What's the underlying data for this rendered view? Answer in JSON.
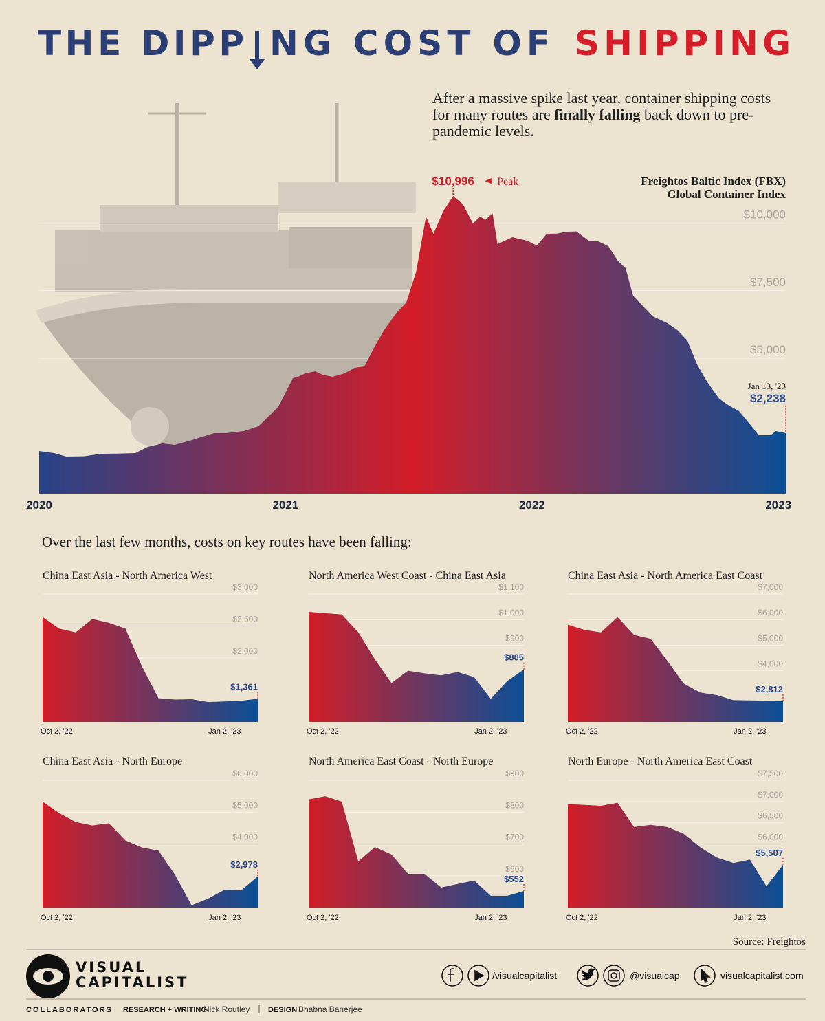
{
  "header": {
    "title": [
      "THE DIPP",
      "NG COST OF",
      "SHIPPING"
    ],
    "intro": [
      "After a massive spike last year, container shipping costs for many routes are ",
      "finally falling",
      " back down to pre-pandemic levels."
    ],
    "section_heading": "Over the last few months, costs on key routes have been falling:",
    "source": "Source: Freightos"
  },
  "chart_data": [
    {
      "type": "area",
      "title": [
        "Freightos Baltic Index (FBX)",
        "Global Container Index"
      ],
      "x": [
        2020.0,
        2020.06,
        2020.11,
        2020.18,
        2020.25,
        2020.32,
        2020.39,
        2020.44,
        2020.5,
        2020.55,
        2020.62,
        2020.71,
        2020.76,
        2020.83,
        2020.89,
        2020.97,
        2021.03,
        2021.05,
        2021.08,
        2021.12,
        2021.15,
        2021.19,
        2021.24,
        2021.28,
        2021.32,
        2021.36,
        2021.4,
        2021.45,
        2021.49,
        2021.53,
        2021.57,
        2021.6,
        2021.64,
        2021.68,
        2021.72,
        2021.76,
        2021.79,
        2021.81,
        2021.84,
        2021.86,
        2021.92,
        2021.98,
        2022.02,
        2022.06,
        2022.1,
        2022.14,
        2022.18,
        2022.23,
        2022.27,
        2022.31,
        2022.35,
        2022.38,
        2022.41,
        2022.45,
        2022.49,
        2022.55,
        2022.59,
        2022.63,
        2022.67,
        2022.71,
        2022.76,
        2022.8,
        2022.84,
        2022.88,
        2022.92,
        2022.97,
        2022.99,
        2023.03
      ],
      "values": [
        1575,
        1500,
        1372,
        1380,
        1474,
        1480,
        1500,
        1728,
        1855,
        1804,
        1982,
        2236,
        2240,
        2312,
        2490,
        3201,
        4268,
        4319,
        4446,
        4522,
        4395,
        4319,
        4446,
        4649,
        4700,
        5411,
        6047,
        6682,
        7063,
        8206,
        10239,
        9604,
        10442,
        10996,
        10696,
        9985,
        10239,
        10112,
        10366,
        9223,
        9477,
        9350,
        9172,
        9604,
        9610,
        9680,
        9690,
        9350,
        9320,
        9146,
        8587,
        8333,
        7317,
        6936,
        6555,
        6301,
        6047,
        5666,
        4776,
        4141,
        3506,
        3252,
        3049,
        2617,
        2160,
        2170,
        2312,
        2238
      ],
      "value_labels": [
        null,
        null,
        null,
        null,
        null,
        null,
        null,
        null,
        null,
        null,
        null,
        null,
        null,
        null,
        null,
        null,
        null,
        null,
        null,
        null,
        null,
        null,
        null,
        null,
        null,
        null,
        null,
        null,
        null,
        null,
        null,
        null,
        null,
        "$10,996",
        null,
        null,
        null,
        null,
        null,
        null,
        null,
        null,
        null,
        null,
        null,
        null,
        null,
        null,
        null,
        null,
        null,
        null,
        null,
        null,
        null,
        null,
        null,
        null,
        null,
        null,
        null,
        null,
        null,
        null,
        null,
        null,
        null,
        "$2,238"
      ],
      "annotations": {
        "peak": "Peak",
        "latest_date": "Jan 13, '23"
      },
      "xlim": [
        2020,
        2023.03
      ],
      "xticks": [
        2020,
        2021,
        2022,
        2023
      ],
      "ylim": [
        0,
        11000
      ],
      "yticks": [
        {
          "value": 5000,
          "label": "$5,000"
        },
        {
          "value": 7500,
          "label": "$7,500"
        },
        {
          "value": 10000,
          "label": "$10,000"
        }
      ],
      "grid": true,
      "gradient": [
        "#274388",
        "#d21d28",
        "#0b4f96"
      ]
    },
    {
      "type": "area",
      "title": "China East Asia - North America West",
      "categories": [
        "Oct 2, '22",
        null,
        null,
        null,
        null,
        null,
        null,
        null,
        null,
        null,
        null,
        "Jan 2, '23",
        null,
        null
      ],
      "values": [
        2640,
        2460,
        2400,
        2610,
        2550,
        2460,
        1870,
        1370,
        1350,
        1355,
        1310,
        1320,
        1330,
        1361
      ],
      "value_labels": [
        null,
        null,
        null,
        null,
        null,
        null,
        null,
        null,
        null,
        null,
        null,
        null,
        null,
        "$1,361"
      ],
      "ylim": [
        1000,
        3000
      ],
      "yticks": [
        {
          "value": 2000,
          "label": "$2,000"
        },
        {
          "value": 2500,
          "label": "$2,500"
        },
        {
          "value": 3000,
          "label": "$3,000"
        }
      ],
      "grid": true,
      "gradient": [
        "#d21d28",
        "#0b4f96"
      ]
    },
    {
      "type": "area",
      "title": "North America West Coast - China East Asia",
      "categories": [
        "Oct 2, '22",
        null,
        null,
        null,
        null,
        null,
        null,
        null,
        null,
        null,
        null,
        "Jan 2, '23",
        null,
        null
      ],
      "values": [
        1030,
        1025,
        1020,
        950,
        845,
        752,
        800,
        790,
        782,
        795,
        775,
        690,
        760,
        805
      ],
      "value_labels": [
        null,
        null,
        null,
        null,
        null,
        null,
        null,
        null,
        null,
        null,
        null,
        null,
        null,
        "$805"
      ],
      "ylim": [
        600,
        1100
      ],
      "yticks": [
        {
          "value": 900,
          "label": "$900"
        },
        {
          "value": 1000,
          "label": "$1,000"
        },
        {
          "value": 1100,
          "label": "$1,100"
        }
      ],
      "grid": true,
      "gradient": [
        "#d21d28",
        "#0b4f96"
      ]
    },
    {
      "type": "area",
      "title": "China East Asia - North America East Coast",
      "categories": [
        "Oct 2, '22",
        null,
        null,
        null,
        null,
        null,
        null,
        null,
        null,
        null,
        null,
        "Jan 2, '23",
        null,
        null
      ],
      "values": [
        5800,
        5600,
        5500,
        6100,
        5400,
        5250,
        4400,
        3500,
        3150,
        3050,
        2850,
        2840,
        2830,
        2812
      ],
      "value_labels": [
        null,
        null,
        null,
        null,
        null,
        null,
        null,
        null,
        null,
        null,
        null,
        null,
        null,
        "$2,812"
      ],
      "ylim": [
        2000,
        7000
      ],
      "yticks": [
        {
          "value": 4000,
          "label": "$4,000"
        },
        {
          "value": 5000,
          "label": "$5,000"
        },
        {
          "value": 6000,
          "label": "$6,000"
        },
        {
          "value": 7000,
          "label": "$7,000"
        }
      ],
      "grid": true,
      "gradient": [
        "#d21d28",
        "#0b4f96"
      ]
    },
    {
      "type": "area",
      "title": "China East Asia - North Europe",
      "categories": [
        "Oct 2, '22",
        null,
        null,
        null,
        null,
        null,
        null,
        null,
        null,
        null,
        null,
        "Jan 2, '23",
        null,
        null
      ],
      "values": [
        5330,
        4970,
        4690,
        4580,
        4650,
        4110,
        3890,
        3790,
        3030,
        2070,
        2280,
        2560,
        2540,
        2978
      ],
      "value_labels": [
        null,
        null,
        null,
        null,
        null,
        null,
        null,
        null,
        null,
        null,
        null,
        null,
        null,
        "$2,978"
      ],
      "ylim": [
        2000,
        6000
      ],
      "yticks": [
        {
          "value": 4000,
          "label": "$4,000"
        },
        {
          "value": 5000,
          "label": "$5,000"
        },
        {
          "value": 6000,
          "label": "$6,000"
        }
      ],
      "grid": true,
      "gradient": [
        "#d21d28",
        "#0b4f96"
      ]
    },
    {
      "type": "area",
      "title": "North America East Coast - North Europe",
      "categories": [
        "Oct 2, '22",
        null,
        null,
        null,
        null,
        null,
        null,
        null,
        null,
        null,
        null,
        "Jan 2, '23",
        null,
        null
      ],
      "values": [
        840,
        850,
        833,
        645,
        690,
        667,
        606,
        606,
        563,
        574,
        585,
        537,
        537,
        552
      ],
      "value_labels": [
        null,
        null,
        null,
        null,
        null,
        null,
        null,
        null,
        null,
        null,
        null,
        null,
        null,
        "$552"
      ],
      "ylim": [
        500,
        900
      ],
      "yticks": [
        {
          "value": 600,
          "label": "$600"
        },
        {
          "value": 700,
          "label": "$700"
        },
        {
          "value": 800,
          "label": "$800"
        },
        {
          "value": 900,
          "label": "$900"
        }
      ],
      "grid": true,
      "gradient": [
        "#d21d28",
        "#0b4f96"
      ]
    },
    {
      "type": "area",
      "title": "North Europe - North America East Coast",
      "categories": [
        "Oct 2, '22",
        null,
        null,
        null,
        null,
        null,
        null,
        null,
        null,
        null,
        null,
        "Jan 2, '23",
        null,
        null
      ],
      "values": [
        6940,
        6920,
        6900,
        6970,
        6400,
        6450,
        6400,
        6240,
        5920,
        5680,
        5550,
        5630,
        5000,
        5507
      ],
      "value_labels": [
        null,
        null,
        null,
        null,
        null,
        null,
        null,
        null,
        null,
        null,
        null,
        null,
        null,
        "$5,507"
      ],
      "ylim": [
        4500,
        7500
      ],
      "yticks": [
        {
          "value": 6000,
          "label": "$6,000"
        },
        {
          "value": 6500,
          "label": "$6,500"
        },
        {
          "value": 7000,
          "label": "$7,000"
        },
        {
          "value": 7500,
          "label": "$7,500"
        }
      ],
      "grid": true,
      "gradient": [
        "#d21d28",
        "#0b4f96"
      ]
    }
  ],
  "footer": {
    "brand": [
      "VISUAL",
      "CAPITALIST"
    ],
    "social": [
      "/visualcapitalist",
      "@visualcap",
      "visualcapitalist.com"
    ],
    "collaborators": "COLLABORATORS",
    "credits": [
      {
        "role": "RESEARCH + WRITING",
        "name": "Nick Routley"
      },
      {
        "role": "DESIGN",
        "name": "Bhabna Banerjee"
      }
    ]
  }
}
